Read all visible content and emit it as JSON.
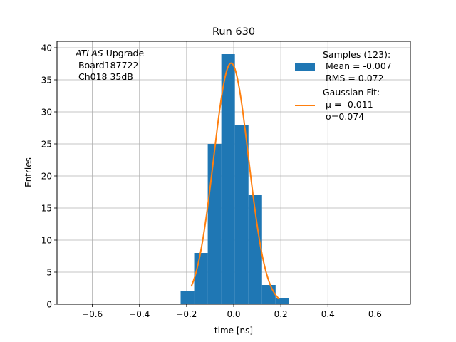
{
  "chart_data": {
    "type": "bar",
    "title": "Run 630",
    "xlabel": "time [ns]",
    "ylabel": "Entries",
    "xlim": [
      -0.75,
      0.75
    ],
    "ylim": [
      0,
      41
    ],
    "xticks": [
      -0.6,
      -0.4,
      -0.2,
      0.0,
      0.2,
      0.4,
      0.6
    ],
    "xtick_labels": [
      "−0.6",
      "−0.4",
      "−0.2",
      "0.0",
      "0.2",
      "0.4",
      "0.6"
    ],
    "yticks": [
      0,
      5,
      10,
      15,
      20,
      25,
      30,
      35,
      40
    ],
    "ytick_labels": [
      "0",
      "5",
      "10",
      "15",
      "20",
      "25",
      "30",
      "35",
      "40"
    ],
    "grid": true,
    "legend_position": "top-right",
    "annotation": {
      "line1_italic": "ATLAS",
      "line1_rest": " Upgrade",
      "line2": " Board187722",
      "line3": " Ch018 35dB"
    },
    "series": [
      {
        "kind": "histogram",
        "color": "#1f77b4",
        "legend_lines": [
          "Samples (123):",
          " Mean = -0.007",
          " RMS = 0.072"
        ],
        "bin_edges": [
          -0.2253,
          -0.1677,
          -0.1101,
          -0.0525,
          0.0051,
          0.0627,
          0.1203,
          0.1779,
          0.2355
        ],
        "values": [
          2,
          8,
          25,
          39,
          28,
          17,
          3,
          1
        ]
      },
      {
        "kind": "line",
        "color": "#ff7f0e",
        "legend_lines": [
          "Gaussian Fit:",
          " μ = -0.011",
          " σ=0.074"
        ],
        "fit": {
          "mu": -0.011,
          "sigma": 0.074,
          "amplitude": 37.6,
          "x_range": [
            -0.18,
            0.195
          ]
        }
      }
    ]
  }
}
